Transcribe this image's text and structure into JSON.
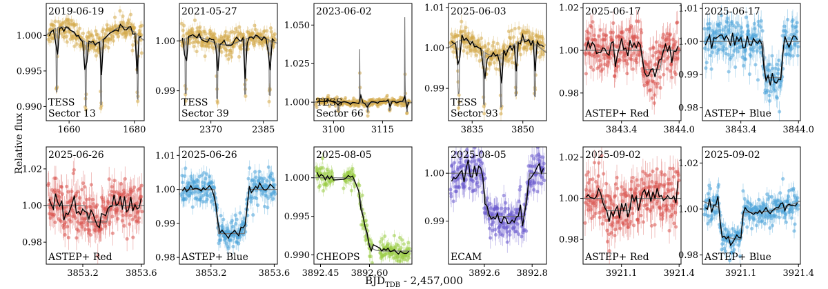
{
  "figure": {
    "ylabel": "Relative flux",
    "xlabel_main": "BJD",
    "xlabel_sub": "TDB",
    "xlabel_rest": " - 2,457,000"
  },
  "chart_data": [
    {
      "type": "scatter",
      "date": "2019-06-19",
      "labels": [
        "TESS",
        "Sector 13"
      ],
      "color": "#d4a94a",
      "xlim": [
        1653,
        1683
      ],
      "ylim": [
        0.988,
        1.0045
      ],
      "xticks": [
        1660,
        1680
      ],
      "yticks": [
        0.99,
        0.995,
        1.0
      ],
      "ytick_labels": [
        "0.990",
        "0.995",
        "1.000"
      ],
      "transits": [
        1656.2,
        1665.1,
        1669.8,
        1681.0
      ],
      "depth": 0.009,
      "dur": 0.45,
      "modulation": 0.0012,
      "noise": 0.0008,
      "trend": 0
    },
    {
      "type": "scatter",
      "date": "2021-05-27",
      "labels": [
        "TESS",
        "Sector 39"
      ],
      "color": "#d4a94a",
      "xlim": [
        2361,
        2389
      ],
      "ylim": [
        0.984,
        1.0075
      ],
      "xticks": [
        2370,
        2385
      ],
      "yticks": [
        0.99,
        1.0
      ],
      "ytick_labels": [
        "0.99",
        "1.00"
      ],
      "transits": [
        2362.8,
        2371.8,
        2379.8,
        2386.8
      ],
      "depth": 0.011,
      "dur": 0.45,
      "modulation": 0.0008,
      "noise": 0.0012,
      "trend": 0
    },
    {
      "type": "scatter",
      "date": "2023-06-02",
      "labels": [
        "TESS",
        "Sector 66"
      ],
      "color": "#d4a94a",
      "xlim": [
        3094,
        3124
      ],
      "ylim": [
        0.988,
        1.064
      ],
      "xticks": [
        3100,
        3115
      ],
      "yticks": [
        1.0,
        1.025,
        1.05
      ],
      "ytick_labels": [
        "1.000",
        "1.025",
        "1.050"
      ],
      "transits": [
        3101.5,
        3110.5,
        3117.2,
        3122.5
      ],
      "depth": 0.006,
      "dur": 0.4,
      "modulation": 0.0006,
      "noise": 0.0012,
      "trend": 0,
      "flares": [
        [
          3108.0,
          0.035
        ],
        [
          3121.8,
          0.055
        ]
      ]
    },
    {
      "type": "scatter",
      "date": "2025-06-03",
      "labels": [
        "TESS",
        "Sector 93"
      ],
      "color": "#d4a94a",
      "xlim": [
        3828,
        3857
      ],
      "ylim": [
        0.982,
        1.011
      ],
      "xticks": [
        3835,
        3850
      ],
      "yticks": [
        0.99,
        1.0,
        1.01
      ],
      "ytick_labels": [
        "0.99",
        "1.00",
        "1.01"
      ],
      "transits": [
        3831.0,
        3838.5,
        3843.6,
        3848.0,
        3853.6
      ],
      "depth": 0.013,
      "dur": 0.5,
      "modulation": 0.002,
      "noise": 0.0018,
      "trend": 0
    },
    {
      "type": "scatter",
      "date": "2025-06-17",
      "labels": [
        "ASTEP+ Red"
      ],
      "color": "#d9534f",
      "xlim": [
        3843.0,
        3844.02
      ],
      "ylim": [
        0.967,
        1.022
      ],
      "xticks": [
        3843.4,
        3844.0
      ],
      "xtick_labels": [
        "3843.4",
        "3844.0"
      ],
      "yticks": [
        0.98,
        1.0,
        1.02
      ],
      "ytick_labels": [
        "0.98",
        "1.00",
        "1.02"
      ],
      "transits": [
        3843.72
      ],
      "depth": 0.009,
      "dur": 0.22,
      "modulation": 0,
      "noise": 0.006,
      "trend": 0
    },
    {
      "type": "scatter",
      "date": "2025-06-17",
      "labels": [
        "ASTEP+ Blue"
      ],
      "color": "#4aa3d8",
      "xlim": [
        3843.0,
        3844.02
      ],
      "ylim": [
        0.976,
        1.0115
      ],
      "xticks": [
        3843.4,
        3844.0
      ],
      "xtick_labels": [
        "3843.4",
        "3844.0"
      ],
      "yticks": [
        0.98,
        0.99,
        1.0,
        1.01
      ],
      "ytick_labels": [
        "0.98",
        "0.99",
        "1.00",
        "1.01"
      ],
      "transits": [
        3843.74
      ],
      "depth": 0.011,
      "dur": 0.22,
      "modulation": 0,
      "noise": 0.0035,
      "trend": 0
    },
    {
      "type": "scatter",
      "date": "2025-06-26",
      "labels": [
        "ASTEP+ Red"
      ],
      "color": "#d9534f",
      "xlim": [
        3852.95,
        3853.62
      ],
      "ylim": [
        0.968,
        1.032
      ],
      "xticks": [
        3853.2,
        3853.6
      ],
      "xtick_labels": [
        "3853.2",
        "3853.6"
      ],
      "yticks": [
        0.98,
        1.0,
        1.02
      ],
      "ytick_labels": [
        "0.98",
        "1.00",
        "1.02"
      ],
      "transits": [
        3853.3
      ],
      "depth": 0.009,
      "dur": 0.17,
      "modulation": 0,
      "noise": 0.0075,
      "trend": 0
    },
    {
      "type": "scatter",
      "date": "2025-06-26",
      "labels": [
        "ASTEP+ Blue"
      ],
      "color": "#4aa3d8",
      "xlim": [
        3853.0,
        3853.62
      ],
      "ylim": [
        0.978,
        1.0125
      ],
      "xticks": [
        3853.2,
        3853.6
      ],
      "xtick_labels": [
        "3853.2",
        "3853.6"
      ],
      "yticks": [
        0.98,
        0.99,
        1.0,
        1.01
      ],
      "ytick_labels": [
        "0.98",
        "0.99",
        "1.00",
        "1.01"
      ],
      "transits": [
        3853.33
      ],
      "depth": 0.013,
      "dur": 0.22,
      "modulation": 0,
      "noise": 0.0025,
      "trend": 0
    },
    {
      "type": "scatter",
      "date": "2025-08-05",
      "labels": [
        "CHEOPS"
      ],
      "color": "#99cc44",
      "xlim": [
        3892.43,
        3892.73
      ],
      "ylim": [
        0.9888,
        1.004
      ],
      "xticks": [
        3892.45,
        3892.6
      ],
      "xtick_labels": [
        "3892.45",
        "3892.60"
      ],
      "yticks": [
        0.99,
        0.995,
        1.0
      ],
      "ytick_labels": [
        "0.990",
        "0.995",
        "1.000"
      ],
      "transits": [],
      "ingress": [
        3892.58,
        0.0095
      ],
      "noise": 0.0008,
      "gaps": [
        [
          3892.49,
          3892.52
        ],
        [
          3892.555,
          3892.565
        ],
        [
          3892.61,
          3892.63
        ]
      ],
      "modulation": 0,
      "trend": 0
    },
    {
      "type": "scatter",
      "date": "2025-08-05",
      "labels": [
        "ECAM"
      ],
      "color": "#6a5acd",
      "xlim": [
        3892.45,
        3892.86
      ],
      "ylim": [
        0.981,
        1.0055
      ],
      "xticks": [
        3892.6,
        3892.8
      ],
      "xtick_labels": [
        "3892.6",
        "3892.8"
      ],
      "yticks": [
        0.99,
        1.0
      ],
      "ytick_labels": [
        "0.99",
        "1.00"
      ],
      "transits": [
        3892.69
      ],
      "depth": 0.009,
      "dur": 0.2,
      "modulation": 0,
      "noise": 0.0025,
      "trend": 0
    },
    {
      "type": "scatter",
      "date": "2025-09-02",
      "labels": [
        "ASTEP+ Red"
      ],
      "color": "#d9534f",
      "xlim": [
        3920.9,
        3921.41
      ],
      "ylim": [
        0.968,
        1.025
      ],
      "xticks": [
        3921.1,
        3921.4
      ],
      "xtick_labels": [
        "3921.1",
        "3921.4"
      ],
      "yticks": [
        0.98,
        1.0,
        1.02
      ],
      "ytick_labels": [
        "0.98",
        "1.00",
        "1.02"
      ],
      "transits": [
        3921.08
      ],
      "depth": 0.006,
      "dur": 0.15,
      "modulation": 0,
      "noise": 0.007,
      "trend": 0
    },
    {
      "type": "scatter",
      "date": "2025-09-02",
      "labels": [
        "ASTEP+ Blue"
      ],
      "color": "#4aa3d8",
      "xlim": [
        3920.9,
        3921.41
      ],
      "ylim": [
        0.976,
        1.027
      ],
      "xticks": [
        3921.1,
        3921.4
      ],
      "xtick_labels": [
        "3921.1",
        "3921.4"
      ],
      "yticks": [
        0.98,
        1.0,
        1.02
      ],
      "ytick_labels": [
        "0.98",
        "1.00",
        "1.02"
      ],
      "transits": [
        3921.05
      ],
      "depth": 0.012,
      "dur": 0.13,
      "modulation": 0,
      "noise": 0.0035,
      "trend": 0.01
    }
  ]
}
